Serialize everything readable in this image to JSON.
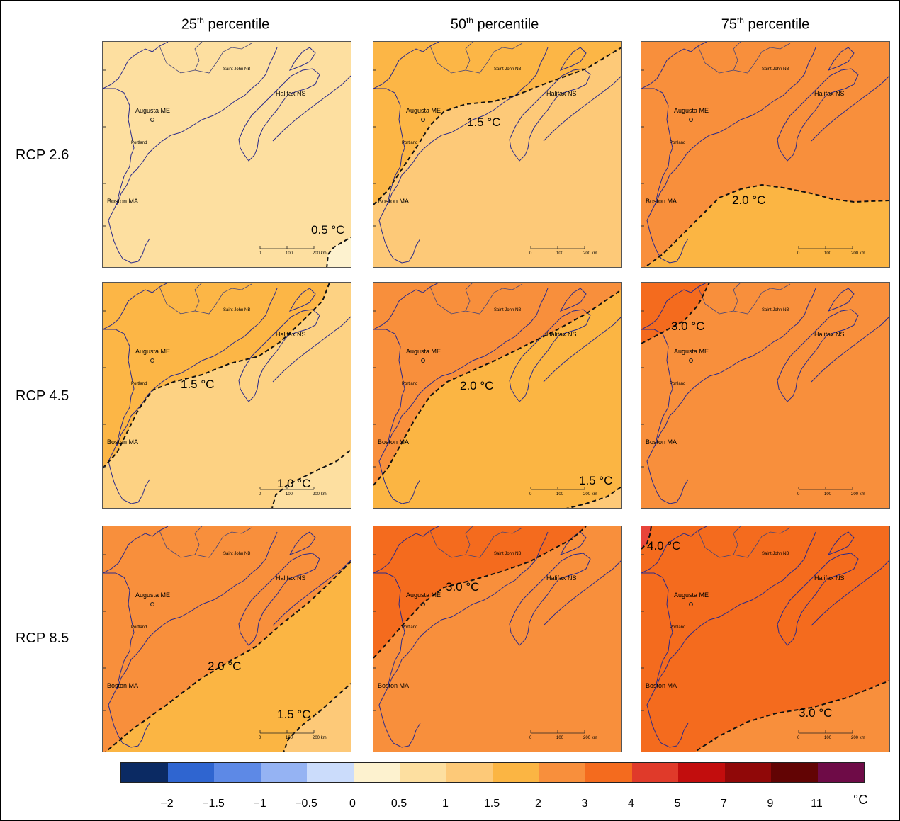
{
  "columns": [
    {
      "pre": "25",
      "sup": "th",
      "post": " percentile"
    },
    {
      "pre": "50",
      "sup": "th",
      "post": " percentile"
    },
    {
      "pre": "75",
      "sup": "th",
      "post": " percentile"
    }
  ],
  "rows": [
    "RCP 2.6",
    "RCP 4.5",
    "RCP 8.5"
  ],
  "cities": {
    "augusta": "Augusta ME",
    "boston": "Boston MA",
    "halifax": "Halifax NS",
    "saint_john": "Saint John NB",
    "portland": "Portland"
  },
  "scale": {
    "ticks": [
      "0",
      "100",
      "200 km"
    ]
  },
  "panels": [
    {
      "base": "#fddfa0",
      "alt": "#fdf2cf",
      "label": "0.5 °C"
    },
    {
      "base": "#fdc978",
      "alt": "#fcb646",
      "label": "1.5 °C"
    },
    {
      "base": "#fbb543",
      "alt": "#f88f3c",
      "label": "2.0 °C"
    },
    {
      "base": "#fdd283",
      "alt": "#fcb646",
      "label": "1.5 °C",
      "label2": "1.0 °C",
      "alt2": "#fddfa0"
    },
    {
      "base": "#fbb543",
      "alt": "#f88f3c",
      "label": "2.0 °C",
      "label2": "1.5 °C",
      "alt2": "#fdc978"
    },
    {
      "base": "#f88f3c",
      "alt": "#f46b1e",
      "label": "3.0 °C"
    },
    {
      "base": "#fbb543",
      "alt": "#f88f3c",
      "label": "2.0 °C",
      "label2": "1.5 °C",
      "alt2": "#fdc978"
    },
    {
      "base": "#f88f3c",
      "alt": "#f46b1e",
      "label": "3.0 °C"
    },
    {
      "base": "#f46b1e",
      "alt": "#e8443a",
      "label": "4.0 °C",
      "label2": "3.0 °C",
      "alt2": "#f88f3c"
    }
  ],
  "legend": {
    "colors": [
      "#0b2a63",
      "#2f65d0",
      "#5d89e6",
      "#95b3f3",
      "#cbdcfb",
      "#fdf2cf",
      "#fddfa0",
      "#fdc978",
      "#fbb543",
      "#f88f3c",
      "#f46b1e",
      "#e03a2a",
      "#c20d0d",
      "#900808",
      "#620404",
      "#6e0b47"
    ],
    "ticks": [
      "−2",
      "−1.5",
      "−1",
      "−0.5",
      "0",
      "0.5",
      "1",
      "1.5",
      "2",
      "3",
      "4",
      "5",
      "7",
      "9",
      "11"
    ],
    "unit": "°C"
  }
}
